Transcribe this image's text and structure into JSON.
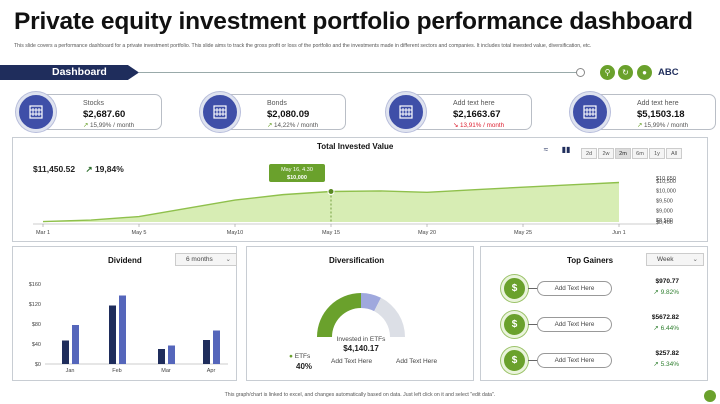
{
  "header": {
    "title": "Private equity investment portfolio performance dashboard",
    "subtitle": "This slide covers a performance dashboard for a private investment portfolio. This slide aims to track the gross profit or loss of the portfolio and the investments made in different sectors and companies. It includes total invested value, diversification, etc."
  },
  "nav": {
    "tab_label": "Dashboard",
    "user_label": "ABC"
  },
  "kpis": [
    {
      "label": "Stocks",
      "value": "$2,687.60",
      "change": "15,99% / month",
      "direction": "up"
    },
    {
      "label": "Bonds",
      "value": "$2,080.09",
      "change": "14,22% / month",
      "direction": "up"
    },
    {
      "label": "Add text here",
      "value": "$2,1663.67",
      "change": "13,91% / month",
      "direction": "down"
    },
    {
      "label": "Add text here",
      "value": "$5,1503.18",
      "change": "15,99% / month",
      "direction": "up"
    }
  ],
  "invested": {
    "title": "Total Invested Value",
    "total": "$11,450.52",
    "change": "19,84%",
    "ranges": [
      "2d",
      "2w",
      "2m",
      "6m",
      "1y",
      "All"
    ],
    "active_range": "2m",
    "tooltip_date": "May 16, 4.30",
    "tooltip_value": "$10,000"
  },
  "colors": {
    "navy": "#1f2d5c",
    "green": "#6aa12c",
    "blue": "#5566bb",
    "dark_blue": "#1f2d5c",
    "red": "#dd2233"
  },
  "chart_data": [
    {
      "type": "area",
      "title": "Total Invested Value",
      "x": [
        "Mar 1",
        "",
        "May 5",
        "",
        "May 10",
        "",
        "May 15",
        "",
        "May 20",
        "",
        "May 25",
        "",
        "Jun 1"
      ],
      "values": [
        8420,
        8500,
        8680,
        9100,
        9520,
        9800,
        9960,
        9990,
        9920,
        10050,
        10180,
        10300,
        10420
      ],
      "yticks": [
        "$10,650",
        "$10,500",
        "$10,000",
        "$9,500",
        "$9,000",
        "$8,500",
        "$8,400"
      ],
      "ytick_values": [
        10650,
        10500,
        10000,
        9500,
        9000,
        8500,
        8400
      ],
      "xtick_labels": [
        "Mar 1",
        "May 5",
        "May10",
        "May 15",
        "May 20",
        "May 25",
        "Jun 1"
      ],
      "ylim": [
        8400,
        10650
      ]
    },
    {
      "type": "bar",
      "title": "Dividend",
      "categories": [
        "Jan",
        "Feb",
        "Mar",
        "Apr"
      ],
      "series": [
        {
          "values": [
            47,
            117,
            30,
            48
          ]
        },
        {
          "values": [
            78,
            137,
            37,
            67
          ]
        }
      ],
      "yticks": [
        "$160",
        "$120",
        "$80",
        "$40",
        "$0"
      ],
      "ylim": [
        0,
        160
      ]
    },
    {
      "type": "pie",
      "title": "Diversification",
      "categories": [
        "ETFs",
        "",
        ""
      ],
      "values": [
        40,
        12,
        28
      ]
    }
  ],
  "dividend": {
    "title": "Dividend",
    "period": "6 months"
  },
  "diversification": {
    "title": "Diversification",
    "center_label": "Invested in ETFs",
    "center_value": "$4,140.17",
    "legend_name": "ETFs",
    "legend_value": "40%",
    "text1": "Add Text Here",
    "text2": "Add Text Here"
  },
  "gainers": {
    "title": "Top Gainers",
    "period": "Week",
    "items": [
      {
        "label": "Add Text Here",
        "value": "$970.77",
        "pct": "9.82%",
        "icon": "$"
      },
      {
        "label": "Add Text Here",
        "value": "$5672.82",
        "pct": "6.44%",
        "icon": "$"
      },
      {
        "label": "Add Text Here",
        "value": "$257.82",
        "pct": "5.34%",
        "icon": "$"
      }
    ]
  },
  "footer": "This graph/chart is linked to excel, and changes automatically based on data. Just left click on it and select \"edit data\"."
}
